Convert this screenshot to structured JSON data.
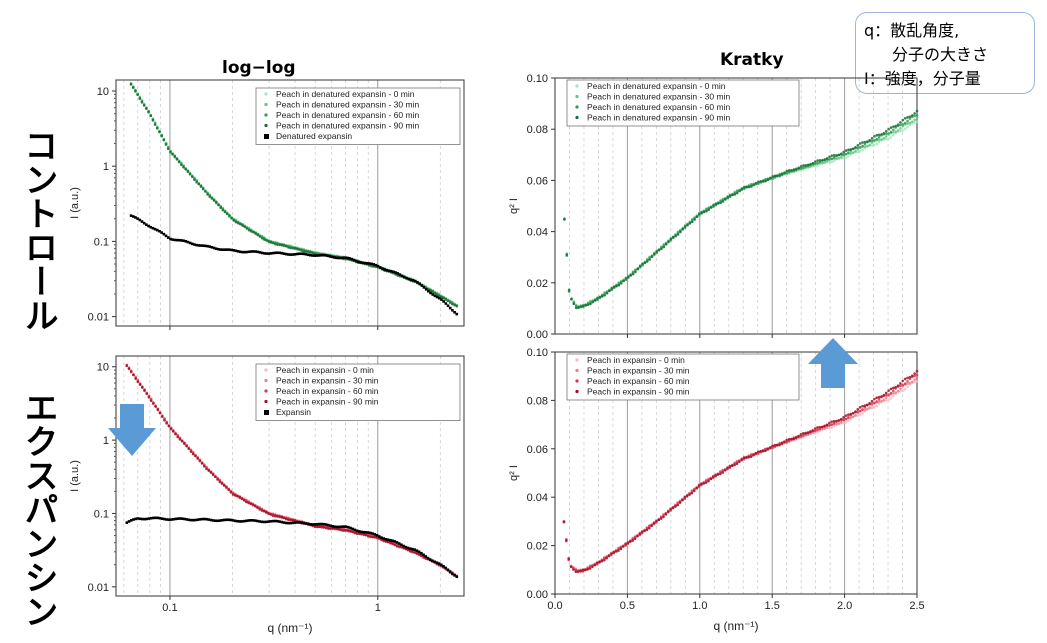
{
  "row_labels": {
    "top": "コントロール",
    "bottom": "エクスパンシン"
  },
  "column_titles": {
    "left": "log−log",
    "right": "Kratky"
  },
  "info_box": {
    "line1": "q：散乱角度,",
    "line2": "分子の大きさ",
    "line3": "I：強度，分子量"
  },
  "colors": {
    "control_series": [
      "#a8e4bc",
      "#5cc97e",
      "#2f9e55",
      "#1a6b36"
    ],
    "expansin_series": [
      "#f6b8c2",
      "#ec7d8f",
      "#d8364e",
      "#9e0f26"
    ],
    "reference": "#000000",
    "arrow": "#5b9bd5"
  },
  "arrows": [
    {
      "name": "down-arrow",
      "direction": "down"
    },
    {
      "name": "up-arrow",
      "direction": "up"
    }
  ],
  "chart_data": [
    {
      "id": "control-loglog",
      "type": "scatter",
      "xscale": "log",
      "yscale": "log",
      "xlim": [
        0.055,
        2.6
      ],
      "ylim": [
        0.0075,
        14
      ],
      "xticks": [
        0.1,
        1
      ],
      "xtick_labels": [
        "",
        ""
      ],
      "yticks": [
        0.01,
        0.1,
        1,
        10
      ],
      "ytick_labels": [
        "0.01",
        "0.1",
        "1",
        "10"
      ],
      "xlabel": "",
      "ylabel": "I (a.u.)",
      "grid": "vertical-dashed",
      "legend_position": "top-right",
      "series": [
        {
          "name": "Peach in denatured expansin - 0 min",
          "curve": "peach"
        },
        {
          "name": "Peach in denatured expansin - 30 min",
          "curve": "peach"
        },
        {
          "name": "Peach in denatured expansin - 60 min",
          "curve": "peach"
        },
        {
          "name": "Peach in denatured expansin - 90 min",
          "curve": "peach"
        },
        {
          "name": "Denatured expansin",
          "curve": "reference",
          "x": [
            0.065,
            0.08,
            0.1,
            0.15,
            0.2,
            0.3,
            0.5,
            0.7,
            1.0,
            1.5,
            2.0,
            2.4
          ],
          "y": [
            0.22,
            0.16,
            0.11,
            0.085,
            0.075,
            0.07,
            0.066,
            0.06,
            0.047,
            0.03,
            0.017,
            0.011
          ]
        }
      ],
      "peach_curve": {
        "x": [
          0.065,
          0.08,
          0.1,
          0.15,
          0.2,
          0.3,
          0.5,
          0.7,
          1.0,
          1.5,
          2.0,
          2.4
        ],
        "y": [
          12.5,
          5.0,
          1.6,
          0.45,
          0.2,
          0.1,
          0.07,
          0.06,
          0.046,
          0.03,
          0.019,
          0.014
        ]
      }
    },
    {
      "id": "control-kratky",
      "type": "scatter",
      "xlim": [
        0,
        2.5
      ],
      "ylim": [
        0,
        0.1
      ],
      "xticks": [
        0.5,
        1.0,
        1.5,
        2.0
      ],
      "xtick_labels": [
        "",
        "",
        "",
        ""
      ],
      "yticks": [
        0,
        0.02,
        0.04,
        0.06,
        0.08,
        0.1
      ],
      "ytick_labels": [
        "0.00",
        "0.02",
        "0.04",
        "0.06",
        "0.08",
        "0.10"
      ],
      "xlabel": "",
      "ylabel": "q² I",
      "grid": "vertical-dashed",
      "legend_position": "top-left",
      "series": [
        {
          "name": "Peach in denatured expansin - 0 min"
        },
        {
          "name": "Peach in denatured expansin - 30 min"
        },
        {
          "name": "Peach in denatured expansin - 60 min"
        },
        {
          "name": "Peach in denatured expansin - 90 min"
        }
      ],
      "curve": {
        "x": [
          0.065,
          0.1,
          0.15,
          0.2,
          0.3,
          0.5,
          0.7,
          1.0,
          1.3,
          1.6,
          2.0,
          2.3,
          2.5
        ],
        "y": [
          0.045,
          0.015,
          0.0105,
          0.011,
          0.014,
          0.022,
          0.032,
          0.047,
          0.057,
          0.063,
          0.07,
          0.078,
          0.085
        ]
      }
    },
    {
      "id": "expansin-loglog",
      "type": "scatter",
      "xscale": "log",
      "yscale": "log",
      "xlim": [
        0.055,
        2.6
      ],
      "ylim": [
        0.0075,
        14
      ],
      "xticks": [
        0.1,
        1
      ],
      "xtick_labels": [
        "0.1",
        "1"
      ],
      "yticks": [
        0.01,
        0.1,
        1,
        10
      ],
      "ytick_labels": [
        "0.01",
        "0.1",
        "1",
        "10"
      ],
      "xlabel": "q (nm⁻¹)",
      "ylabel": "I (a.u.)",
      "grid": "vertical-dashed",
      "legend_position": "top-right",
      "series": [
        {
          "name": "Peach in expansin - 0 min",
          "curve": "peach"
        },
        {
          "name": "Peach in expansin - 30 min",
          "curve": "peach"
        },
        {
          "name": "Peach in expansin - 60 min",
          "curve": "peach"
        },
        {
          "name": "Peach in expansin - 90 min",
          "curve": "peach"
        },
        {
          "name": "Expansin",
          "curve": "reference",
          "x": [
            0.062,
            0.07,
            0.08,
            0.1,
            0.15,
            0.2,
            0.3,
            0.5,
            0.7,
            1.0,
            1.5,
            2.0,
            2.4
          ],
          "y": [
            0.075,
            0.085,
            0.086,
            0.084,
            0.082,
            0.08,
            0.078,
            0.072,
            0.065,
            0.05,
            0.032,
            0.02,
            0.014
          ]
        }
      ],
      "peach_curve": {
        "x": [
          0.062,
          0.08,
          0.1,
          0.15,
          0.2,
          0.3,
          0.5,
          0.7,
          1.0,
          1.5,
          2.0,
          2.4
        ],
        "y": [
          10.5,
          3.8,
          1.5,
          0.42,
          0.19,
          0.1,
          0.068,
          0.06,
          0.047,
          0.03,
          0.02,
          0.014
        ]
      }
    },
    {
      "id": "expansin-kratky",
      "type": "scatter",
      "xlim": [
        0,
        2.5
      ],
      "ylim": [
        0,
        0.1
      ],
      "xticks": [
        0.0,
        0.5,
        1.0,
        1.5,
        2.0,
        2.5
      ],
      "xtick_labels": [
        "0.0",
        "0.5",
        "1.0",
        "1.5",
        "2.0",
        "2.5"
      ],
      "yticks": [
        0,
        0.02,
        0.04,
        0.06,
        0.08,
        0.1
      ],
      "ytick_labels": [
        "0.00",
        "0.02",
        "0.04",
        "0.06",
        "0.08",
        "0.10"
      ],
      "xlabel": "q (nm⁻¹)",
      "ylabel": "q² I",
      "grid": "vertical-dashed",
      "legend_position": "top-left",
      "series": [
        {
          "name": "Peach in expansin - 0 min"
        },
        {
          "name": "Peach in expansin - 30 min"
        },
        {
          "name": "Peach in expansin - 60 min"
        },
        {
          "name": "Peach in expansin - 90 min"
        }
      ],
      "curve": {
        "x": [
          0.062,
          0.1,
          0.15,
          0.2,
          0.3,
          0.5,
          0.7,
          1.0,
          1.3,
          1.6,
          2.0,
          2.3,
          2.5
        ],
        "y": [
          0.03,
          0.012,
          0.0095,
          0.0098,
          0.013,
          0.021,
          0.03,
          0.045,
          0.056,
          0.063,
          0.072,
          0.082,
          0.09
        ]
      }
    }
  ]
}
